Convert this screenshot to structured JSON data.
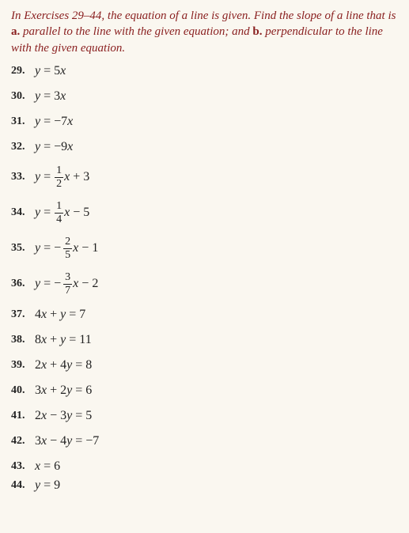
{
  "instructions": {
    "pre": "In Exercises 29–44, the equation of a line is given. Find the slope of a line that is ",
    "a_label": "a.",
    "a_text": " parallel to the line with the given equation; and ",
    "b_label": "b.",
    "b_text": " perpendicular to the line with the given equation."
  },
  "p29": {
    "num": "29.",
    "lhs": "y",
    "rhs_coef": "5",
    "rhs_var": "x"
  },
  "p30": {
    "num": "30.",
    "lhs": "y",
    "rhs_coef": "3",
    "rhs_var": "x"
  },
  "p31": {
    "num": "31.",
    "lhs": "y",
    "rhs_coef": "−7",
    "rhs_var": "x"
  },
  "p32": {
    "num": "32.",
    "lhs": "y",
    "rhs_coef": "−9",
    "rhs_var": "x"
  },
  "p33": {
    "num": "33.",
    "lhs": "y",
    "frac_top": "1",
    "frac_bot": "2",
    "var": "x",
    "op": "+",
    "const": "3"
  },
  "p34": {
    "num": "34.",
    "lhs": "y",
    "frac_top": "1",
    "frac_bot": "4",
    "var": "x",
    "op": "−",
    "const": "5"
  },
  "p35": {
    "num": "35.",
    "lhs": "y",
    "neg": "−",
    "frac_top": "2",
    "frac_bot": "5",
    "var": "x",
    "op": "−",
    "const": "1"
  },
  "p36": {
    "num": "36.",
    "lhs": "y",
    "neg": "−",
    "frac_top": "3",
    "frac_bot": "7",
    "var": "x",
    "op": "−",
    "const": "2"
  },
  "p37": {
    "num": "37.",
    "text": "4x + y = 7"
  },
  "p38": {
    "num": "38.",
    "text": "8x + y = 11"
  },
  "p39": {
    "num": "39.",
    "text": "2x + 4y = 8"
  },
  "p40": {
    "num": "40.",
    "text": "3x + 2y = 6"
  },
  "p41": {
    "num": "41.",
    "text": "2x − 3y = 5"
  },
  "p42": {
    "num": "42.",
    "text": "3x − 4y = −7"
  },
  "p43": {
    "num": "43.",
    "text": "x = 6"
  },
  "p44": {
    "num": "44.",
    "text": "y = 9"
  }
}
